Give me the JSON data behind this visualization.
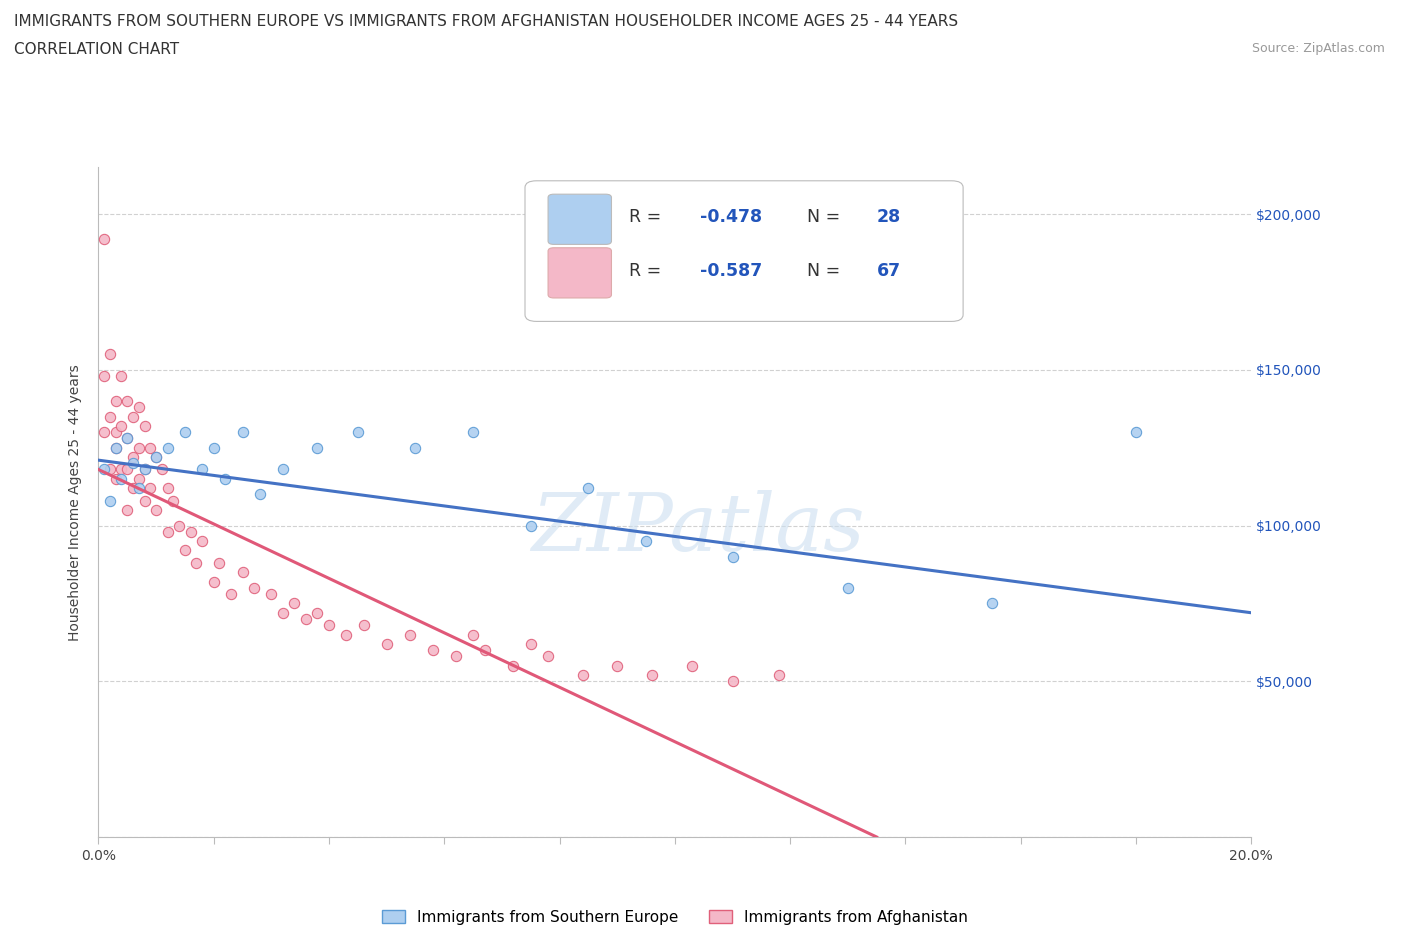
{
  "title_line1": "IMMIGRANTS FROM SOUTHERN EUROPE VS IMMIGRANTS FROM AFGHANISTAN HOUSEHOLDER INCOME AGES 25 - 44 YEARS",
  "title_line2": "CORRELATION CHART",
  "source_text": "Source: ZipAtlas.com",
  "ylabel": "Householder Income Ages 25 - 44 years",
  "xmin": 0.0,
  "xmax": 0.2,
  "ymin": 0,
  "ymax": 215000,
  "yticks": [
    0,
    50000,
    100000,
    150000,
    200000
  ],
  "blue_color": "#aecff0",
  "blue_edge": "#5b9bd5",
  "pink_color": "#f4b8c8",
  "pink_edge": "#e0607a",
  "trend_blue": "#4472c4",
  "trend_pink": "#e05878",
  "watermark": "ZIPatlas",
  "label_blue": "Immigrants from Southern Europe",
  "label_pink": "Immigrants from Afghanistan",
  "legend_r_blue": "R = -0.478",
  "legend_n_blue": "N = 28",
  "legend_r_pink": "R = -0.587",
  "legend_n_pink": "N = 67",
  "blue_scatter_x": [
    0.001,
    0.002,
    0.003,
    0.004,
    0.005,
    0.006,
    0.007,
    0.008,
    0.01,
    0.012,
    0.015,
    0.018,
    0.02,
    0.022,
    0.025,
    0.028,
    0.032,
    0.038,
    0.045,
    0.055,
    0.065,
    0.075,
    0.085,
    0.095,
    0.11,
    0.13,
    0.155,
    0.18
  ],
  "blue_scatter_y": [
    118000,
    108000,
    125000,
    115000,
    128000,
    120000,
    112000,
    118000,
    122000,
    125000,
    130000,
    118000,
    125000,
    115000,
    130000,
    110000,
    118000,
    125000,
    130000,
    125000,
    130000,
    100000,
    112000,
    95000,
    90000,
    80000,
    75000,
    130000
  ],
  "pink_scatter_x": [
    0.001,
    0.001,
    0.002,
    0.002,
    0.002,
    0.003,
    0.003,
    0.003,
    0.003,
    0.004,
    0.004,
    0.004,
    0.005,
    0.005,
    0.005,
    0.005,
    0.006,
    0.006,
    0.006,
    0.007,
    0.007,
    0.007,
    0.008,
    0.008,
    0.008,
    0.009,
    0.009,
    0.01,
    0.01,
    0.011,
    0.012,
    0.012,
    0.013,
    0.014,
    0.015,
    0.016,
    0.017,
    0.018,
    0.02,
    0.021,
    0.023,
    0.025,
    0.027,
    0.03,
    0.032,
    0.034,
    0.036,
    0.038,
    0.04,
    0.043,
    0.046,
    0.05,
    0.054,
    0.058,
    0.062,
    0.067,
    0.072,
    0.078,
    0.084,
    0.09,
    0.096,
    0.103,
    0.11,
    0.118,
    0.001,
    0.065,
    0.075
  ],
  "pink_scatter_y": [
    130000,
    148000,
    135000,
    118000,
    155000,
    140000,
    125000,
    130000,
    115000,
    148000,
    132000,
    118000,
    140000,
    128000,
    118000,
    105000,
    135000,
    122000,
    112000,
    138000,
    125000,
    115000,
    132000,
    118000,
    108000,
    125000,
    112000,
    122000,
    105000,
    118000,
    112000,
    98000,
    108000,
    100000,
    92000,
    98000,
    88000,
    95000,
    82000,
    88000,
    78000,
    85000,
    80000,
    78000,
    72000,
    75000,
    70000,
    72000,
    68000,
    65000,
    68000,
    62000,
    65000,
    60000,
    58000,
    60000,
    55000,
    58000,
    52000,
    55000,
    52000,
    55000,
    50000,
    52000,
    192000,
    65000,
    62000
  ],
  "blue_trend_x": [
    0.0,
    0.2
  ],
  "blue_trend_y": [
    121000,
    72000
  ],
  "pink_trend_x": [
    0.0,
    0.135
  ],
  "pink_trend_y": [
    118000,
    0
  ],
  "background_color": "#ffffff",
  "grid_color": "#cccccc",
  "right_tick_color": "#2255bb",
  "title_fontsize": 11,
  "tick_fontsize": 10,
  "scatter_size": 55
}
